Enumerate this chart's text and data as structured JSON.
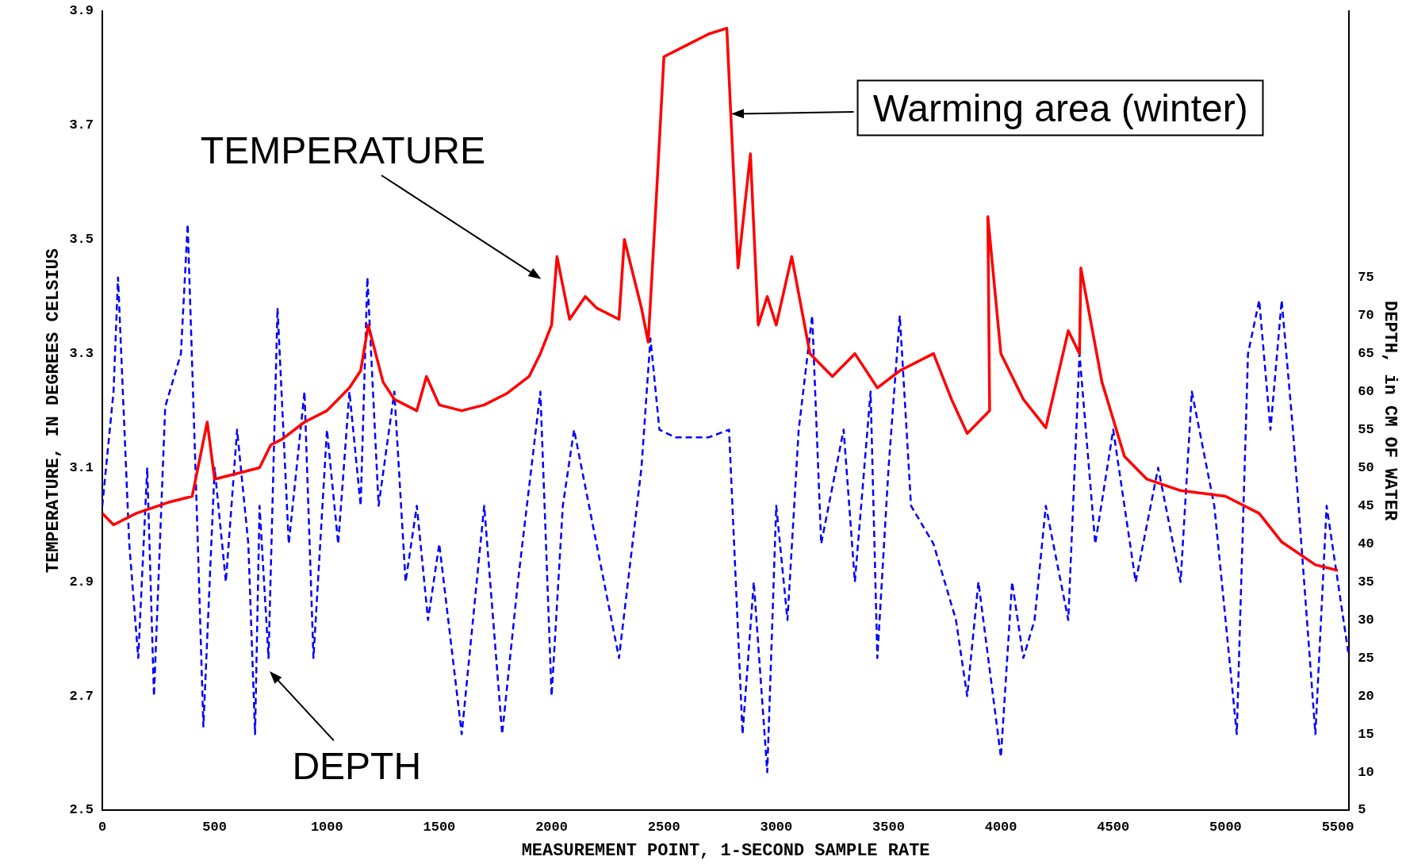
{
  "chart_data": {
    "type": "line",
    "xlabel": "MEASUREMENT POINT, 1-SECOND SAMPLE RATE",
    "ylabel": "TEMPERATURE, IN DEGREES CELSIUS",
    "y2label": "DEPTH, in CM OF WATER",
    "xlim": [
      0,
      5550
    ],
    "xticks": [
      0,
      500,
      1000,
      1500,
      2000,
      2500,
      3000,
      3500,
      4000,
      4500,
      5000,
      5500
    ],
    "ylim": [
      2.5,
      3.9
    ],
    "yticks": [
      2.5,
      2.7,
      2.9,
      3.1,
      3.3,
      3.5,
      3.7,
      3.9
    ],
    "y2lim": [
      5,
      110
    ],
    "y2ticks": [
      5,
      10,
      15,
      20,
      25,
      30,
      35,
      40,
      45,
      50,
      55,
      60,
      65,
      70,
      75
    ],
    "grid": false,
    "legend": false,
    "marker": "none",
    "series": [
      {
        "type": "line",
        "color": "#ff0000",
        "line_style": "solid",
        "x": [
          0,
          50,
          150,
          300,
          400,
          467,
          500,
          600,
          700,
          750,
          800,
          900,
          1000,
          1100,
          1150,
          1184,
          1250,
          1300,
          1400,
          1443,
          1500,
          1600,
          1700,
          1800,
          1900,
          1950,
          2000,
          2024,
          2080,
          2150,
          2200,
          2300,
          2324,
          2400,
          2430,
          2470,
          2500,
          2600,
          2700,
          2780,
          2800,
          2830,
          2885,
          2920,
          2960,
          3000,
          3069,
          3150,
          3250,
          3350,
          3450,
          3550,
          3700,
          3780,
          3850,
          3950,
          3942,
          4000,
          4100,
          4200,
          4300,
          4350,
          4356,
          4450,
          4550,
          4650,
          4800,
          5000,
          5150,
          5250,
          5400,
          5500
        ],
        "values": [
          3.02,
          3.0,
          3.02,
          3.04,
          3.05,
          3.18,
          3.08,
          3.09,
          3.1,
          3.14,
          3.15,
          3.18,
          3.2,
          3.24,
          3.27,
          3.35,
          3.25,
          3.22,
          3.2,
          3.26,
          3.21,
          3.2,
          3.21,
          3.23,
          3.26,
          3.3,
          3.35,
          3.47,
          3.36,
          3.4,
          3.38,
          3.36,
          3.5,
          3.38,
          3.32,
          3.6,
          3.82,
          3.84,
          3.86,
          3.87,
          3.7,
          3.45,
          3.65,
          3.35,
          3.4,
          3.35,
          3.47,
          3.3,
          3.26,
          3.3,
          3.24,
          3.27,
          3.3,
          3.22,
          3.16,
          3.2,
          3.54,
          3.3,
          3.22,
          3.17,
          3.34,
          3.3,
          3.45,
          3.25,
          3.12,
          3.08,
          3.06,
          3.05,
          3.02,
          2.97,
          2.93,
          2.92
        ]
      },
      {
        "type": "line",
        "color": "#0000ff",
        "line_style": "dashed",
        "axis": "y2",
        "x": [
          0,
          50,
          70,
          120,
          160,
          200,
          230,
          280,
          350,
          380,
          420,
          450,
          500,
          550,
          600,
          650,
          680,
          700,
          740,
          780,
          830,
          900,
          940,
          1000,
          1050,
          1100,
          1150,
          1180,
          1230,
          1300,
          1350,
          1400,
          1450,
          1500,
          1600,
          1650,
          1700,
          1780,
          1850,
          1950,
          2000,
          2050,
          2100,
          2200,
          2300,
          2400,
          2440,
          2480,
          2550,
          2700,
          2790,
          2820,
          2850,
          2900,
          2960,
          3000,
          3050,
          3100,
          3160,
          3200,
          3300,
          3350,
          3420,
          3450,
          3500,
          3550,
          3600,
          3700,
          3800,
          3850,
          3900,
          4000,
          4050,
          4100,
          4150,
          4200,
          4300,
          4350,
          4420,
          4500,
          4600,
          4700,
          4800,
          4850,
          4950,
          5050,
          5100,
          5150,
          5200,
          5250,
          5300,
          5350,
          5400,
          5450,
          5500,
          5550
        ],
        "values": [
          45,
          60,
          75,
          40,
          25,
          50,
          20,
          58,
          65,
          82,
          45,
          16,
          50,
          35,
          55,
          40,
          15,
          45,
          25,
          71,
          40,
          60,
          25,
          55,
          40,
          60,
          45,
          75,
          45,
          60,
          35,
          45,
          30,
          40,
          15,
          30,
          45,
          15,
          35,
          60,
          20,
          45,
          55,
          40,
          25,
          50,
          67,
          55,
          54,
          54,
          55,
          35,
          15,
          35,
          10,
          45,
          30,
          55,
          70,
          40,
          55,
          35,
          60,
          25,
          50,
          70,
          45,
          40,
          30,
          20,
          35,
          12,
          35,
          25,
          30,
          45,
          30,
          65,
          40,
          55,
          35,
          50,
          35,
          60,
          45,
          15,
          65,
          72,
          55,
          72,
          55,
          35,
          15,
          45,
          35,
          25
        ]
      }
    ],
    "annotations": [
      "TEMPERATURE",
      "DEPTH",
      {
        "text": "Warming area (winter)",
        "x": 2800,
        "y": 3.72
      }
    ]
  }
}
